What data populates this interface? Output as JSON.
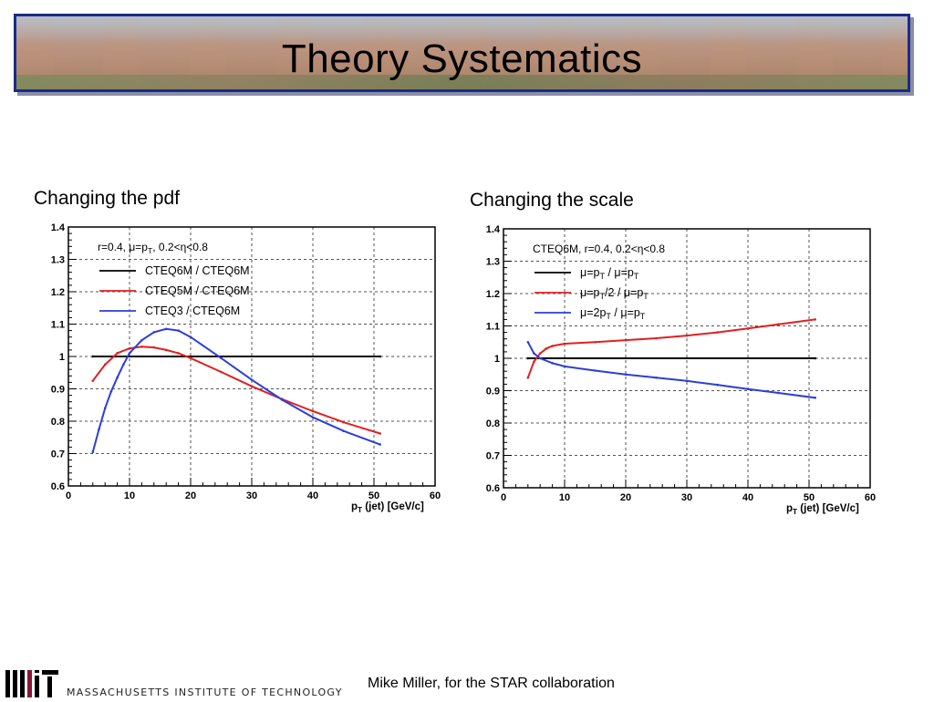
{
  "slide": {
    "title": "Theory Systematics",
    "footer_institution": "MASSACHUSETTS INSTITUTE OF TECHNOLOGY",
    "footer_credit": "Mike Miller, for the STAR collaboration"
  },
  "colors": {
    "black": "#000000",
    "red": "#e02020",
    "blue": "#2c3ed8",
    "frame": "#1b2a8a"
  },
  "chart_data": [
    {
      "type": "line",
      "title": "Changing the pdf",
      "xlabel": "p_T (jet) [GeV/c]",
      "xlabel_main": "p",
      "xlabel_sub": "T",
      "xlabel_rest": " (jet) [GeV/c]",
      "xlim": [
        0,
        60
      ],
      "ylim": [
        0.6,
        1.4
      ],
      "xticks": [
        0,
        10,
        20,
        30,
        40,
        50,
        60
      ],
      "yticks": [
        0.6,
        0.7,
        0.8,
        0.9,
        1,
        1.1,
        1.2,
        1.3,
        1.4
      ],
      "ytick_labels": [
        "0.6",
        "0.7",
        "0.8",
        "0.9",
        "1",
        "1.1",
        "1.2",
        "1.3",
        "1.4"
      ],
      "grid": true,
      "legend_position": "top-left",
      "legend_header": "r=0.4, μ=p_T, 0.2<η<0.8",
      "legend_header_parts": [
        "r=0.4, μ=p",
        "T",
        ", 0.2<η<0.8"
      ],
      "series": [
        {
          "name": "CTEQ6M / CTEQ6M",
          "color": "#000000",
          "x": [
            4,
            51
          ],
          "y": [
            1.0,
            1.0
          ]
        },
        {
          "name": "CTEQ5M / CTEQ6M",
          "color": "#e02020",
          "x": [
            4,
            6,
            8,
            10,
            12,
            14,
            16,
            18,
            20,
            25,
            30,
            35,
            40,
            45,
            51
          ],
          "y": [
            0.925,
            0.975,
            1.01,
            1.025,
            1.03,
            1.028,
            1.02,
            1.01,
            0.995,
            0.952,
            0.908,
            0.868,
            0.831,
            0.797,
            0.762
          ]
        },
        {
          "name": "CTEQ3 / CTEQ6M",
          "color": "#2c3ed8",
          "x": [
            4,
            5,
            6,
            7,
            8,
            9,
            10,
            12,
            14,
            16,
            18,
            20,
            25,
            30,
            35,
            40,
            45,
            51
          ],
          "y": [
            0.705,
            0.775,
            0.84,
            0.892,
            0.935,
            0.975,
            1.01,
            1.05,
            1.075,
            1.085,
            1.08,
            1.06,
            0.995,
            0.928,
            0.866,
            0.812,
            0.77,
            0.728
          ]
        }
      ]
    },
    {
      "type": "line",
      "title": "Changing the scale",
      "xlabel": "p_T (jet) [GeV/c]",
      "xlabel_main": "p",
      "xlabel_sub": "T",
      "xlabel_rest": " (jet) [GeV/c]",
      "xlim": [
        0,
        60
      ],
      "ylim": [
        0.6,
        1.4
      ],
      "xticks": [
        0,
        10,
        20,
        30,
        40,
        50,
        60
      ],
      "yticks": [
        0.6,
        0.7,
        0.8,
        0.9,
        1,
        1.1,
        1.2,
        1.3,
        1.4
      ],
      "ytick_labels": [
        "0.6",
        "0.7",
        "0.8",
        "0.9",
        "1",
        "1.1",
        "1.2",
        "1.3",
        "1.4"
      ],
      "grid": true,
      "legend_position": "top-left",
      "legend_header": "CTEQ6M, r=0.4, 0.2<η<0.8",
      "legend_header_parts": [
        "CTEQ6M, r=0.4, 0.2<η<0.8",
        "",
        ""
      ],
      "series": [
        {
          "name": "μ=p_T / μ=p_T",
          "color": "#000000",
          "label_parts": [
            "μ=p",
            "T",
            " / μ=p",
            "T"
          ],
          "x": [
            4,
            51
          ],
          "y": [
            1.0,
            1.0
          ]
        },
        {
          "name": "μ=p_T/2 / μ=p_T",
          "color": "#e02020",
          "label_parts": [
            "μ=p",
            "T",
            "/2 / μ=p",
            "T"
          ],
          "x": [
            4,
            5,
            6,
            7,
            8,
            10,
            15,
            20,
            25,
            30,
            35,
            40,
            45,
            51
          ],
          "y": [
            0.94,
            0.99,
            1.015,
            1.03,
            1.038,
            1.045,
            1.05,
            1.056,
            1.062,
            1.07,
            1.08,
            1.092,
            1.105,
            1.12
          ]
        },
        {
          "name": "μ=2p_T / μ=p_T",
          "color": "#2c3ed8",
          "label_parts": [
            "μ=2p",
            "T",
            " / μ=p",
            "T"
          ],
          "x": [
            4,
            5,
            6,
            8,
            10,
            15,
            20,
            25,
            30,
            35,
            40,
            45,
            51
          ],
          "y": [
            1.05,
            1.015,
            1.0,
            0.985,
            0.975,
            0.962,
            0.95,
            0.94,
            0.93,
            0.918,
            0.905,
            0.893,
            0.878
          ]
        }
      ]
    }
  ]
}
